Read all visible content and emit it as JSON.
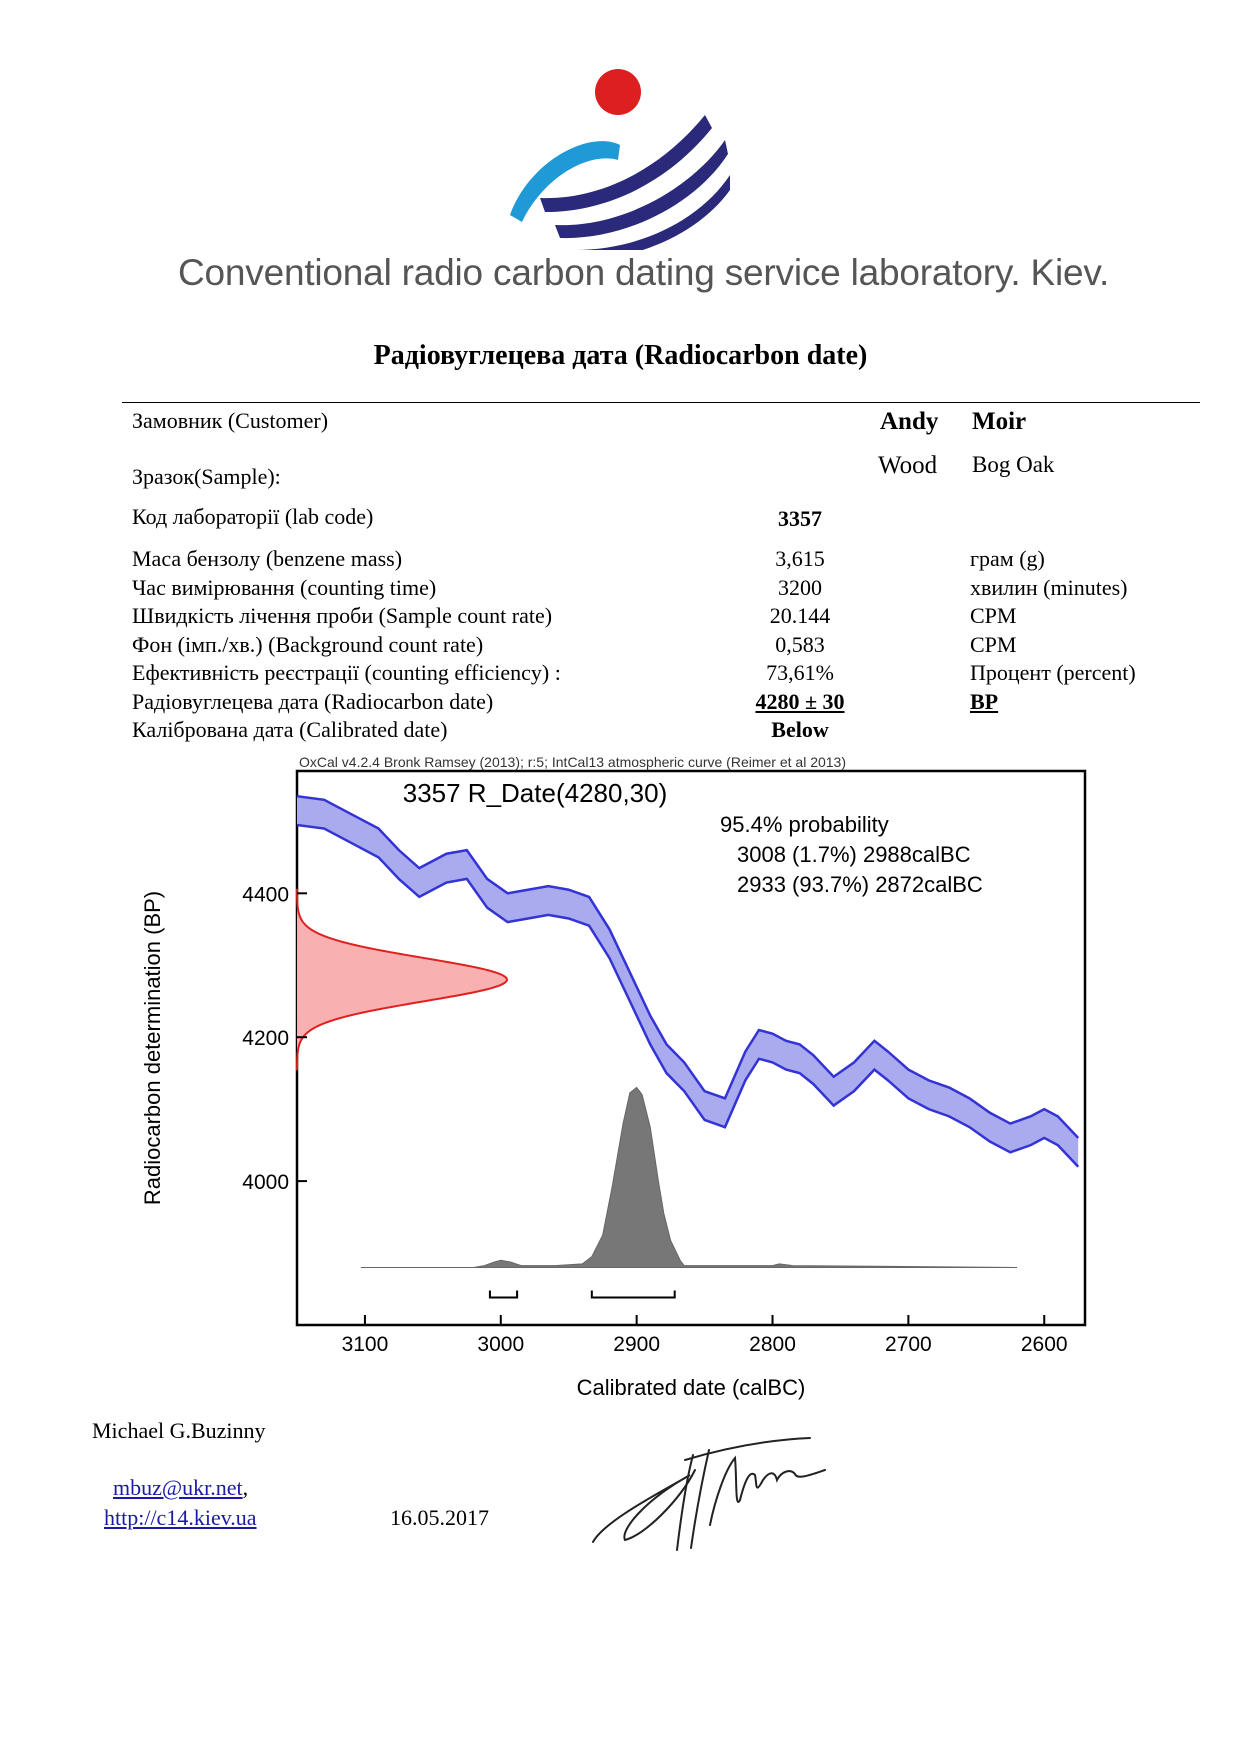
{
  "header": {
    "lab_name": "Conventional radio carbon dating service laboratory. Kiev.",
    "title": "Радіовуглецева дата (Radiocarbon date)",
    "colors": {
      "logo_red": "#dc2020",
      "logo_blue": "#1f9ad6",
      "logo_navy": "#2b2a7a",
      "lab_name_gray": "#555555"
    }
  },
  "fields": {
    "customer_label": "Замовник (Customer)",
    "customer_first": "Andy",
    "customer_last": "Moir",
    "sample_label": "Зразок(Sample):",
    "sample_material": "Wood",
    "sample_type": "Bog Oak",
    "labcode_label": "Код лабораторії (lab code)",
    "labcode_value": "3357",
    "rows": [
      {
        "label": "Маса бензолу (benzene mass)",
        "value": "3,615",
        "unit": "грам (g)"
      },
      {
        "label": "Час вимірювання (counting time)",
        "value": "3200",
        "unit": "хвилин (minutes)"
      },
      {
        "label": "Швидкість лічення проби (Sample count rate)",
        "value": "20.144",
        "unit": "CPM"
      },
      {
        "label": "Фон (імп./хв.) (Background count rate)",
        "value": "0,583",
        "unit": "CPM"
      },
      {
        "label": "Ефективність реєстрації (counting efficiency) :",
        "value": "73,61%",
        "unit": "Процент (percent)"
      }
    ],
    "rc_label": "Радіовуглецева дата (Radiocarbon date)",
    "rc_value": "4280 ± 30",
    "rc_unit": "BP",
    "cal_label": "Калібрована дата (Calibrated date)",
    "cal_value": "Below"
  },
  "chart_data": {
    "type": "line",
    "header": "OxCal v4.2.4 Bronk Ramsey (2013); r:5; IntCal13 atmospheric curve (Reimer et al 2013)",
    "title": "3357 R_Date(4280,30)",
    "annotations": [
      "95.4% probability",
      "3008 (1.7%) 2988calBC",
      "2933 (93.7%) 2872calBC"
    ],
    "xlabel": "Calibrated date (calBC)",
    "ylabel": "Radiocarbon determination (BP)",
    "xlim": [
      3150,
      2570
    ],
    "ylim": [
      3800,
      4570
    ],
    "xticks": [
      3100,
      3000,
      2900,
      2800,
      2700,
      2600
    ],
    "yticks": [
      4400,
      4200,
      4000
    ],
    "colors": {
      "curve": "#3333d6",
      "curve_fill": "#aaaaee",
      "measurement": "#e02020",
      "measurement_fill": "#f9b0b0",
      "posterior": "#777777"
    },
    "calibration_curve": {
      "x": [
        3150,
        3130,
        3110,
        3090,
        3075,
        3060,
        3040,
        3025,
        3010,
        2995,
        2980,
        2965,
        2950,
        2935,
        2920,
        2905,
        2890,
        2878,
        2865,
        2850,
        2835,
        2820,
        2810,
        2800,
        2790,
        2780,
        2770,
        2755,
        2740,
        2725,
        2715,
        2700,
        2685,
        2670,
        2655,
        2640,
        2625,
        2610,
        2600,
        2590,
        2580,
        2575
      ],
      "y": [
        4515,
        4510,
        4490,
        4470,
        4440,
        4415,
        4435,
        4440,
        4400,
        4380,
        4385,
        4390,
        4385,
        4375,
        4330,
        4270,
        4210,
        4170,
        4145,
        4105,
        4095,
        4160,
        4190,
        4185,
        4175,
        4170,
        4155,
        4125,
        4145,
        4175,
        4160,
        4135,
        4120,
        4110,
        4095,
        4075,
        4060,
        4070,
        4080,
        4070,
        4050,
        4040
      ],
      "band": 20
    },
    "measurement": {
      "mean": 4280,
      "sd": 30
    },
    "posterior": {
      "x": [
        3103,
        3020,
        3012,
        3005,
        3000,
        2993,
        2985,
        2960,
        2940,
        2933,
        2925,
        2918,
        2910,
        2905,
        2900,
        2896,
        2890,
        2884,
        2880,
        2875,
        2868,
        2865,
        2800,
        2795,
        2785,
        2620
      ],
      "density": [
        0,
        0,
        0.01,
        0.03,
        0.04,
        0.03,
        0.01,
        0.01,
        0.02,
        0.06,
        0.18,
        0.45,
        0.8,
        0.97,
        1.0,
        0.96,
        0.78,
        0.48,
        0.3,
        0.15,
        0.04,
        0.01,
        0.01,
        0.02,
        0.01,
        0
      ]
    },
    "ranges": [
      {
        "from": 3008,
        "to": 2988
      },
      {
        "from": 2933,
        "to": 2872
      }
    ]
  },
  "footer": {
    "signer": "Michael G.Buzinny",
    "email": "mbuz@ukr.net",
    "email_suffix": ",",
    "url": "http://c14.kiev.ua",
    "date": "16.05.2017"
  }
}
